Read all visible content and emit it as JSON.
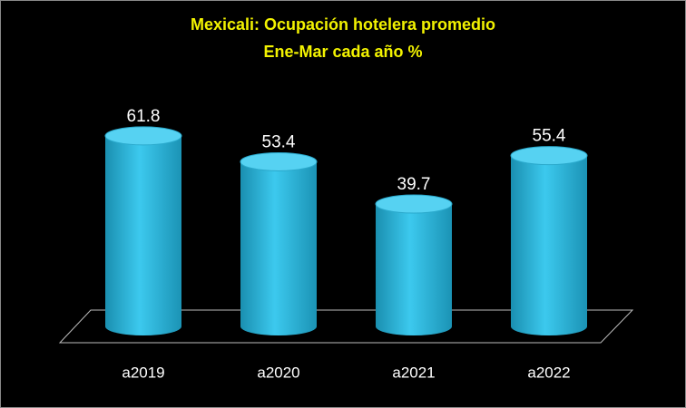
{
  "chart_data": {
    "type": "cylinder-bar",
    "title": "Mexicali: Ocupación hotelera promedio",
    "subtitle": "Ene-Mar cada año %",
    "categories": [
      "a2019",
      "a2020",
      "a2021",
      "a2022"
    ],
    "values": [
      61.8,
      53.4,
      39.7,
      55.4
    ],
    "color": "#2bb8dc"
  }
}
